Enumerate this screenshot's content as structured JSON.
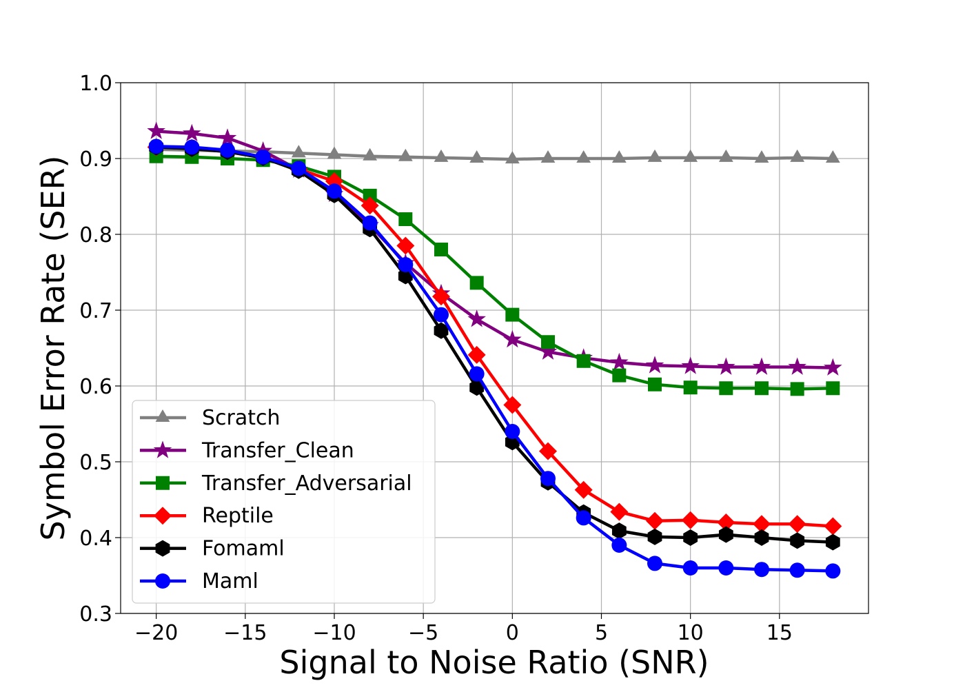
{
  "chart_data": {
    "type": "line",
    "title": "",
    "xlabel": "Signal to Noise Ratio (SNR)",
    "ylabel": "Symbol Error Rate (SER)",
    "xlim": [
      -22,
      20
    ],
    "ylim": [
      0.3,
      1.0
    ],
    "grid": true,
    "legend_position": "bottom-left",
    "x_ticks": [
      -20,
      -15,
      -10,
      -5,
      0,
      5,
      10,
      15
    ],
    "x_tick_labels": [
      "−20",
      "−15",
      "−10",
      "−5",
      "0",
      "5",
      "10",
      "15"
    ],
    "y_ticks": [
      0.3,
      0.4,
      0.5,
      0.6,
      0.7,
      0.8,
      0.9,
      1.0
    ],
    "y_tick_labels": [
      "0.3",
      "0.4",
      "0.5",
      "0.6",
      "0.7",
      "0.8",
      "0.9",
      "1.0"
    ],
    "x": [
      -20,
      -18,
      -16,
      -14,
      -12,
      -10,
      -8,
      -6,
      -4,
      -2,
      0,
      2,
      4,
      6,
      8,
      10,
      12,
      14,
      16,
      18
    ],
    "series": [
      {
        "name": "Scratch",
        "color": "#808080",
        "marker": "triangle",
        "values": [
          0.912,
          0.911,
          0.91,
          0.909,
          0.907,
          0.905,
          0.903,
          0.902,
          0.901,
          0.9,
          0.899,
          0.9,
          0.9,
          0.9,
          0.901,
          0.901,
          0.901,
          0.9,
          0.901,
          0.9
        ]
      },
      {
        "name": "Transfer_Clean",
        "color": "#800080",
        "marker": "star",
        "values": [
          0.936,
          0.933,
          0.927,
          0.91,
          0.885,
          0.853,
          0.812,
          0.762,
          0.722,
          0.688,
          0.661,
          0.645,
          0.637,
          0.631,
          0.627,
          0.626,
          0.625,
          0.625,
          0.625,
          0.624
        ]
      },
      {
        "name": "Transfer_Adversarial",
        "color": "#008000",
        "marker": "square",
        "values": [
          0.903,
          0.902,
          0.9,
          0.898,
          0.89,
          0.876,
          0.851,
          0.82,
          0.78,
          0.736,
          0.694,
          0.658,
          0.633,
          0.614,
          0.602,
          0.598,
          0.597,
          0.597,
          0.596,
          0.597
        ]
      },
      {
        "name": "Reptile",
        "color": "#ff0000",
        "marker": "diamond",
        "values": [
          0.915,
          0.914,
          0.91,
          0.902,
          0.886,
          0.87,
          0.838,
          0.785,
          0.718,
          0.641,
          0.575,
          0.514,
          0.463,
          0.434,
          0.422,
          0.423,
          0.42,
          0.418,
          0.418,
          0.415
        ]
      },
      {
        "name": "Fomaml",
        "color": "#000000",
        "marker": "hexagon",
        "values": [
          0.915,
          0.913,
          0.909,
          0.901,
          0.884,
          0.852,
          0.807,
          0.745,
          0.673,
          0.598,
          0.526,
          0.473,
          0.433,
          0.409,
          0.401,
          0.4,
          0.404,
          0.4,
          0.396,
          0.394
        ]
      },
      {
        "name": "Maml",
        "color": "#0000ff",
        "marker": "circle",
        "values": [
          0.916,
          0.915,
          0.911,
          0.902,
          0.887,
          0.857,
          0.815,
          0.76,
          0.694,
          0.616,
          0.54,
          0.478,
          0.426,
          0.39,
          0.366,
          0.36,
          0.36,
          0.358,
          0.357,
          0.356
        ]
      }
    ]
  }
}
